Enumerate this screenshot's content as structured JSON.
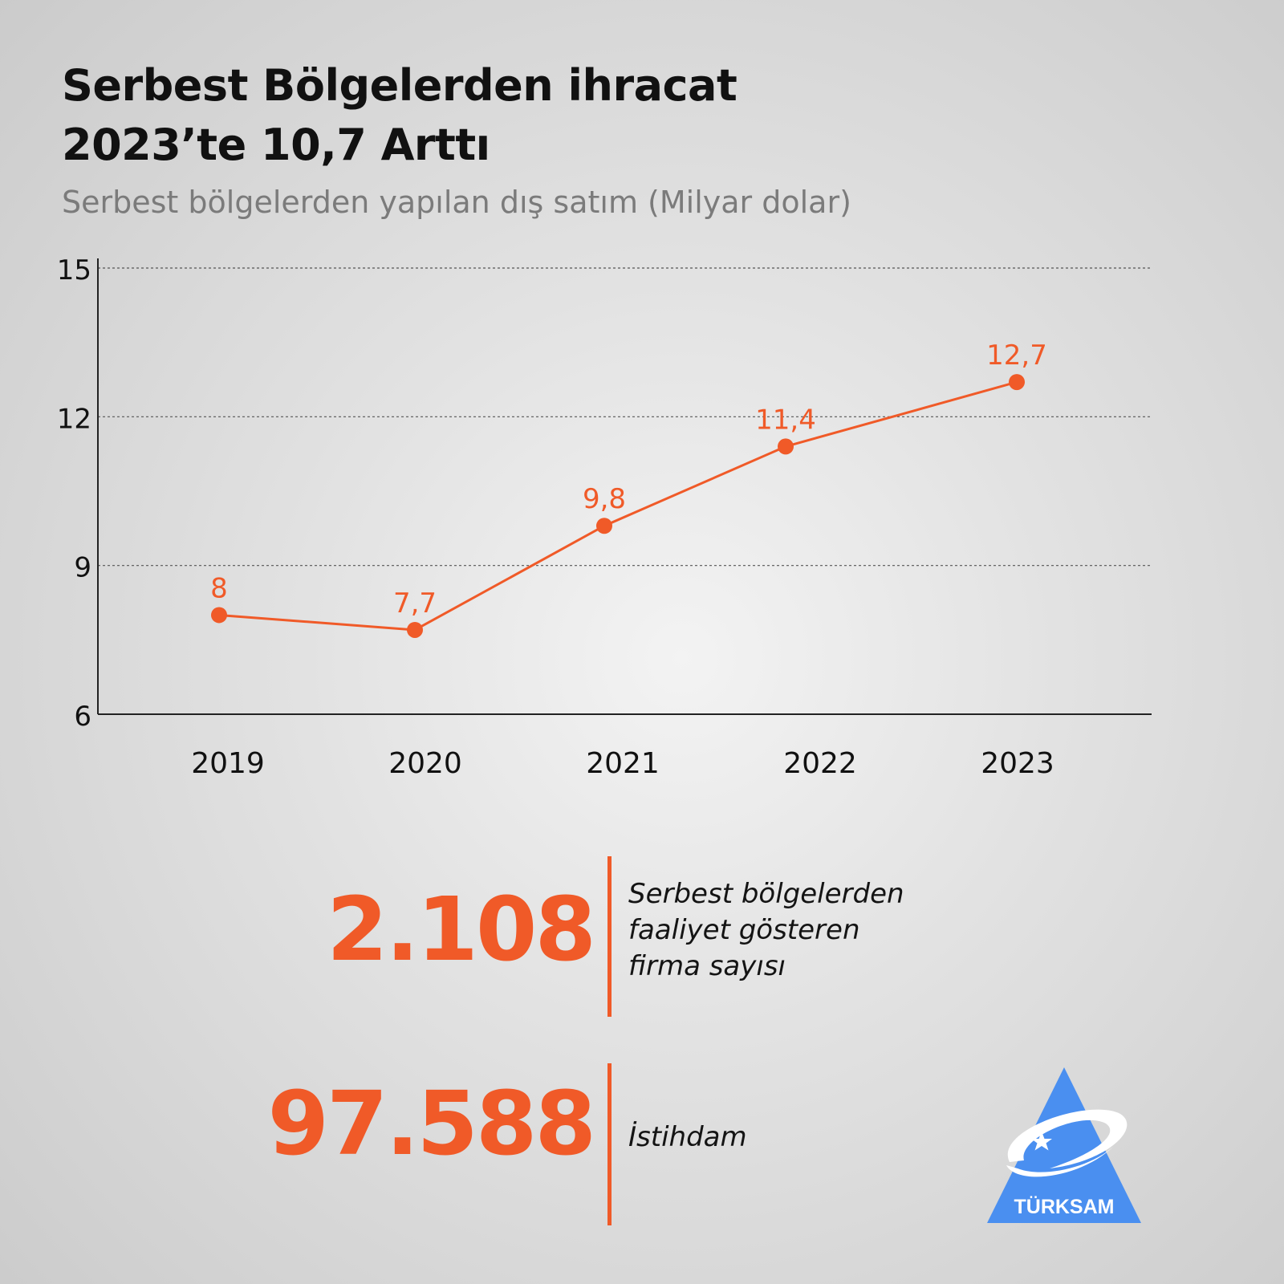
{
  "title": {
    "line1": "Serbest Bölgelerden ihracat",
    "line2": "2023’te 10,7 Arttı"
  },
  "subtitle": "Serbest bölgelerden yapılan dış satım (Milyar dolar)",
  "chart_data": {
    "type": "line",
    "title": "Serbest Bölgelerden ihracat 2023’te 10,7 Arttı",
    "subtitle": "Serbest bölgelerden yapılan dış satım (Milyar dolar)",
    "xlabel": "",
    "ylabel": "",
    "categories": [
      "2019",
      "2020",
      "2021",
      "2022",
      "2023"
    ],
    "series": [
      {
        "values": [
          8,
          7.7,
          9.8,
          11.4,
          12.7
        ],
        "labels": [
          "8",
          "7,7",
          "9,8",
          "11,4",
          "12,7"
        ]
      }
    ],
    "ylim": [
      6,
      15
    ],
    "yticks": [
      6,
      9,
      12,
      15
    ],
    "grid": true,
    "color": "#f05a28"
  },
  "stats": [
    {
      "value": "2.108",
      "label_lines": [
        "Serbest bölgelerden",
        "faaliyet gösteren",
        "firma sayısı"
      ]
    },
    {
      "value": "97.588",
      "label_lines": [
        "İstihdam"
      ]
    }
  ],
  "logo": {
    "text": "TÜRKSAM",
    "color": "#4a8ff0"
  }
}
